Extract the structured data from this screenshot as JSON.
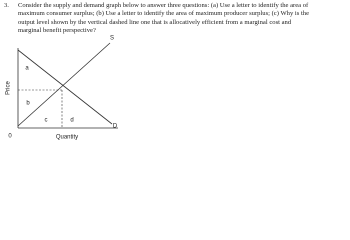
{
  "question": {
    "number": "3.",
    "lines": [
      "Consider the supply and demand graph below to answer three questions: (a) Use a letter to identify the area of",
      "maximum consumer surplus; (b) Use a letter to identify the area of maximum producer surplus; (c) Why is the",
      "output level shown by the vertical dashed line one that is allocatively efficient from a marginal cost and",
      "marginal benefit perspective?"
    ]
  },
  "graph": {
    "y_axis_label": "Price",
    "x_axis_label": "Quantity",
    "origin": "0",
    "supply_label": "S",
    "demand_label": "D",
    "areas": [
      "a",
      "b",
      "c",
      "d"
    ]
  }
}
